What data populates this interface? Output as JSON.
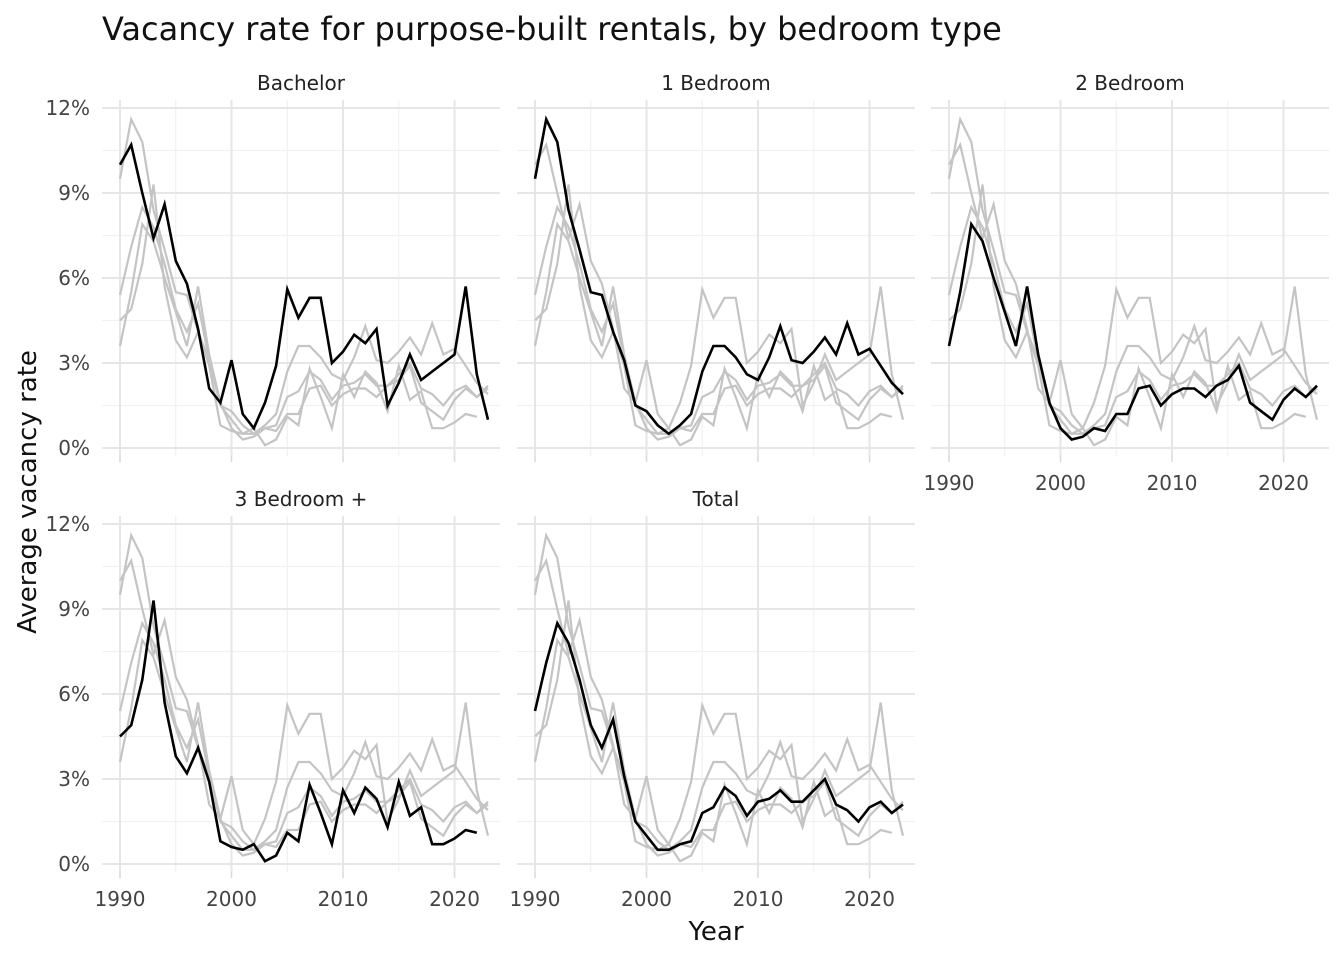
{
  "chart_data": {
    "type": "line",
    "title": "Vacancy rate for purpose-built rentals, by bedroom type",
    "xlabel": "Year",
    "ylabel": "Average vacancy rate",
    "xlim": [
      1990,
      2023
    ],
    "ylim": [
      0,
      12
    ],
    "x_ticks": [
      1990,
      2000,
      2010,
      2020
    ],
    "y_ticks": [
      0,
      3,
      6,
      9,
      12
    ],
    "y_tick_labels": [
      "0%",
      "3%",
      "6%",
      "9%",
      "12%"
    ],
    "grid": true,
    "facet_layout": "3 columns, 2 rows",
    "highlight_color": "#000000",
    "context_color": "#c4c4c4",
    "x": [
      1990,
      1991,
      1992,
      1993,
      1994,
      1995,
      1996,
      1997,
      1998,
      1999,
      2000,
      2001,
      2002,
      2003,
      2004,
      2005,
      2006,
      2007,
      2008,
      2009,
      2010,
      2011,
      2012,
      2013,
      2014,
      2015,
      2016,
      2017,
      2018,
      2019,
      2020,
      2021,
      2022,
      2023
    ],
    "series": [
      {
        "name": "Bachelor",
        "values": [
          10.0,
          10.7,
          9.0,
          7.4,
          8.6,
          6.6,
          5.8,
          4.2,
          2.1,
          1.6,
          3.1,
          1.2,
          0.7,
          1.6,
          2.9,
          5.6,
          4.6,
          5.3,
          5.3,
          3.0,
          3.4,
          4.0,
          3.7,
          4.2,
          1.5,
          2.3,
          3.3,
          2.4,
          2.7,
          3.0,
          3.3,
          5.7,
          2.6,
          1.0
        ]
      },
      {
        "name": "1 Bedroom",
        "values": [
          9.5,
          11.6,
          10.8,
          8.4,
          7.0,
          5.5,
          5.4,
          4.1,
          3.1,
          1.5,
          1.3,
          0.8,
          0.5,
          0.8,
          1.2,
          2.7,
          3.6,
          3.6,
          3.2,
          2.6,
          2.4,
          3.2,
          4.3,
          3.1,
          3.0,
          3.4,
          3.9,
          3.3,
          4.4,
          3.3,
          3.5,
          2.9,
          2.3,
          1.9
        ]
      },
      {
        "name": "2 Bedroom",
        "values": [
          3.6,
          5.5,
          7.9,
          7.3,
          6.0,
          4.8,
          3.6,
          5.7,
          3.3,
          1.6,
          0.7,
          0.3,
          0.4,
          0.7,
          0.6,
          1.2,
          1.2,
          2.1,
          2.2,
          1.5,
          1.9,
          2.1,
          2.1,
          1.8,
          2.2,
          2.4,
          2.9,
          1.6,
          1.3,
          1.0,
          1.7,
          2.1,
          1.8,
          2.2
        ]
      },
      {
        "name": "3 Bedroom +",
        "values": [
          4.5,
          4.9,
          6.5,
          9.3,
          5.7,
          3.8,
          3.2,
          4.1,
          2.9,
          0.8,
          0.6,
          0.5,
          0.7,
          0.1,
          0.3,
          1.1,
          0.8,
          2.8,
          1.8,
          0.7,
          2.6,
          1.8,
          2.7,
          2.3,
          1.3,
          2.9,
          1.7,
          2.0,
          0.7,
          0.7,
          0.9,
          1.2,
          1.1,
          null
        ]
      },
      {
        "name": "Total",
        "values": [
          5.4,
          7.1,
          8.5,
          7.8,
          6.5,
          4.9,
          4.1,
          5.1,
          3.1,
          1.5,
          1.0,
          0.5,
          0.5,
          0.7,
          0.8,
          1.8,
          2.0,
          2.7,
          2.4,
          1.7,
          2.2,
          2.3,
          2.6,
          2.2,
          2.2,
          2.6,
          3.0,
          2.1,
          1.9,
          1.5,
          2.0,
          2.2,
          1.8,
          2.1
        ]
      }
    ]
  }
}
